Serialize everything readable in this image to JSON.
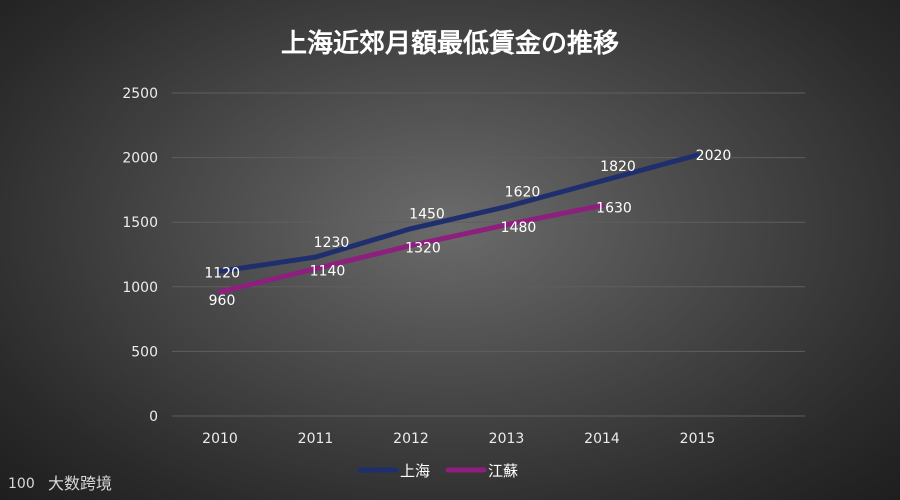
{
  "chart_data": {
    "type": "line",
    "title": "上海近郊月額最低賃金の推移",
    "categories": [
      "2010",
      "2011",
      "2012",
      "2013",
      "2014",
      "2015"
    ],
    "ylim": [
      0,
      2500
    ],
    "yticks": [
      0,
      500,
      1000,
      1500,
      2000,
      2500
    ],
    "grid": true,
    "legend_position": "bottom",
    "series": [
      {
        "name": "上海",
        "values": [
          1120,
          1230,
          1450,
          1620,
          1820,
          2020
        ],
        "color": "#1f2f6e"
      },
      {
        "name": "江蘇",
        "values": [
          960,
          1140,
          1320,
          1480,
          1630,
          null
        ],
        "color": "#8e1f7e"
      }
    ]
  },
  "watermark": {
    "text": "大数跨境",
    "logo_text": "100"
  },
  "colors": {
    "grid": "#5e5e5e",
    "text": "#ffffff",
    "tick": "#ececec"
  }
}
